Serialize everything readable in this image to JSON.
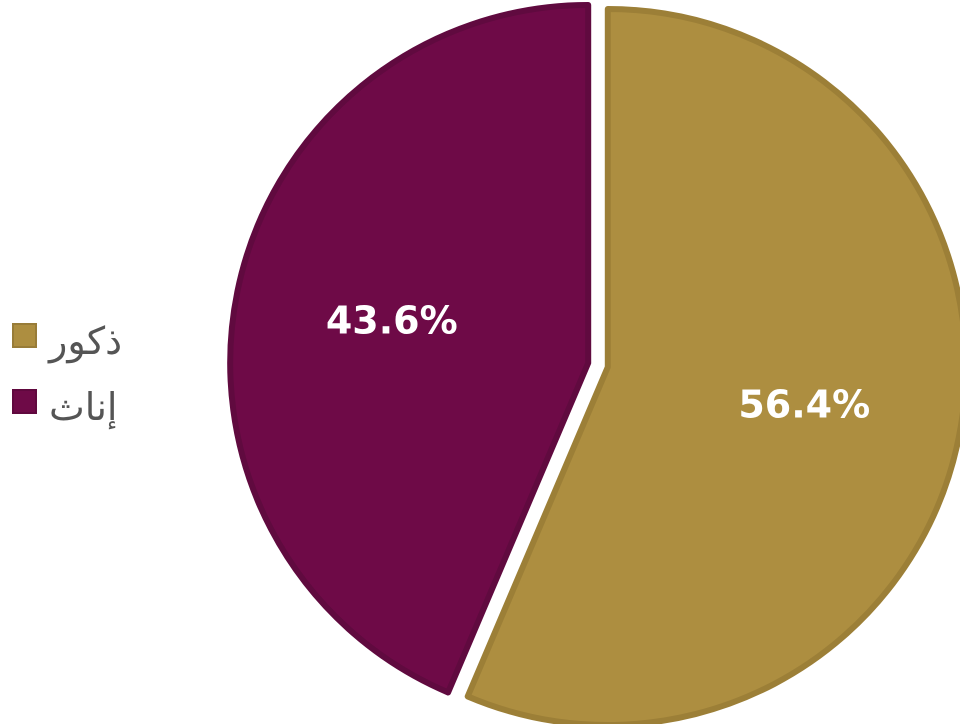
{
  "chart_data": {
    "type": "pie",
    "title": "",
    "categories": [
      "ذكور",
      "إناث"
    ],
    "values": [
      56.4,
      43.6
    ],
    "data_labels": [
      "56.4%",
      "43.6%"
    ],
    "colors": [
      "#AD8E40",
      "#6E0A47"
    ],
    "border_colors": [
      "#9C7F37",
      "#600A3F"
    ],
    "exploded": true,
    "legend_position": "left"
  },
  "legend": {
    "items": [
      {
        "label": "ذكور",
        "color": "#AD8E40"
      },
      {
        "label": "إناث",
        "color": "#6E0A47"
      }
    ]
  }
}
